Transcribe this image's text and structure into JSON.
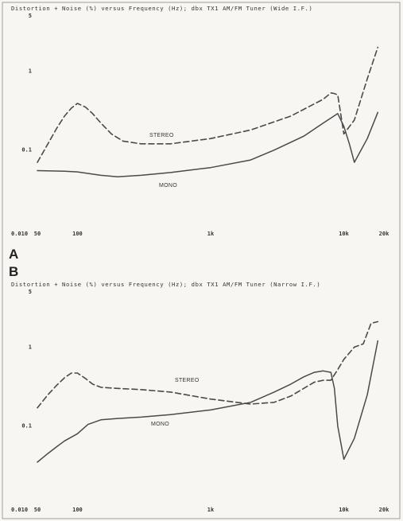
{
  "chart_data": [
    {
      "type": "line",
      "panel": "A",
      "title": "Distortion + Noise (%) versus Frequency (Hz); dbx TX1 AM/FM Tuner (Wide I.F.)",
      "x_scale": "log",
      "y_scale": "log",
      "xlim": [
        50,
        20000
      ],
      "ylim": [
        0.01,
        5
      ],
      "x_ticks": [
        {
          "value": 50,
          "label": "50"
        },
        {
          "value": 100,
          "label": "100"
        },
        {
          "value": 1000,
          "label": "1k"
        },
        {
          "value": 10000,
          "label": "10k"
        },
        {
          "value": 20000,
          "label": "20k"
        }
      ],
      "y_ticks": [
        {
          "value": 5,
          "label": "5"
        },
        {
          "value": 1,
          "label": "1"
        },
        {
          "value": 0.1,
          "label": "0.1"
        },
        {
          "value": 0.01,
          "label": "0.010"
        }
      ],
      "series": [
        {
          "name": "STEREO",
          "style": "dashed",
          "x": [
            50,
            60,
            70,
            80,
            90,
            100,
            115,
            130,
            150,
            180,
            220,
            300,
            500,
            1000,
            2000,
            4000,
            7000,
            8000,
            8500,
            9000,
            10000,
            12000,
            15000,
            18000
          ],
          "y": [
            0.07,
            0.12,
            0.19,
            0.27,
            0.34,
            0.39,
            0.35,
            0.29,
            0.22,
            0.16,
            0.13,
            0.12,
            0.12,
            0.14,
            0.18,
            0.27,
            0.44,
            0.53,
            0.52,
            0.5,
            0.16,
            0.24,
            0.8,
            2.0
          ]
        },
        {
          "name": "MONO",
          "style": "solid",
          "x": [
            50,
            80,
            100,
            150,
            200,
            300,
            500,
            1000,
            2000,
            3000,
            5000,
            7000,
            9000,
            10000,
            11000,
            12000,
            15000,
            18000
          ],
          "y": [
            0.055,
            0.054,
            0.053,
            0.048,
            0.046,
            0.048,
            0.052,
            0.06,
            0.075,
            0.1,
            0.15,
            0.22,
            0.29,
            0.2,
            0.12,
            0.07,
            0.14,
            0.3
          ]
        }
      ]
    },
    {
      "type": "line",
      "panel": "B",
      "title": "Distortion + Noise (%) versus Frequency (Hz); dbx TX1 AM/FM Tuner (Narrow I.F.)",
      "x_scale": "log",
      "y_scale": "log",
      "xlim": [
        50,
        20000
      ],
      "ylim": [
        0.01,
        5
      ],
      "x_ticks": [
        {
          "value": 50,
          "label": "50"
        },
        {
          "value": 100,
          "label": "100"
        },
        {
          "value": 1000,
          "label": "1k"
        },
        {
          "value": 10000,
          "label": "10k"
        },
        {
          "value": 20000,
          "label": "20k"
        }
      ],
      "y_ticks": [
        {
          "value": 5,
          "label": "5"
        },
        {
          "value": 1,
          "label": "1"
        },
        {
          "value": 0.1,
          "label": "0.1"
        },
        {
          "value": 0.01,
          "label": "0.010"
        }
      ],
      "series": [
        {
          "name": "STEREO",
          "style": "dashed",
          "x": [
            50,
            60,
            70,
            80,
            90,
            100,
            115,
            130,
            150,
            200,
            300,
            500,
            1000,
            2000,
            3000,
            4000,
            5000,
            6000,
            7000,
            8000,
            9000,
            10000,
            12000,
            14000,
            16000,
            18000
          ],
          "y": [
            0.17,
            0.25,
            0.33,
            0.41,
            0.47,
            0.47,
            0.4,
            0.34,
            0.31,
            0.3,
            0.29,
            0.27,
            0.22,
            0.19,
            0.2,
            0.24,
            0.3,
            0.36,
            0.38,
            0.38,
            0.52,
            0.7,
            1.0,
            1.1,
            2.0,
            2.1
          ]
        },
        {
          "name": "MONO",
          "style": "solid",
          "x": [
            50,
            60,
            70,
            80,
            100,
            120,
            150,
            200,
            300,
            500,
            1000,
            2000,
            3000,
            4000,
            5000,
            6000,
            7000,
            8000,
            8500,
            9000,
            10000,
            12000,
            15000,
            18000
          ],
          "y": [
            0.035,
            0.045,
            0.055,
            0.065,
            0.08,
            0.105,
            0.12,
            0.125,
            0.13,
            0.14,
            0.16,
            0.2,
            0.27,
            0.34,
            0.42,
            0.48,
            0.5,
            0.48,
            0.3,
            0.1,
            0.038,
            0.07,
            0.25,
            1.2
          ]
        }
      ]
    }
  ]
}
